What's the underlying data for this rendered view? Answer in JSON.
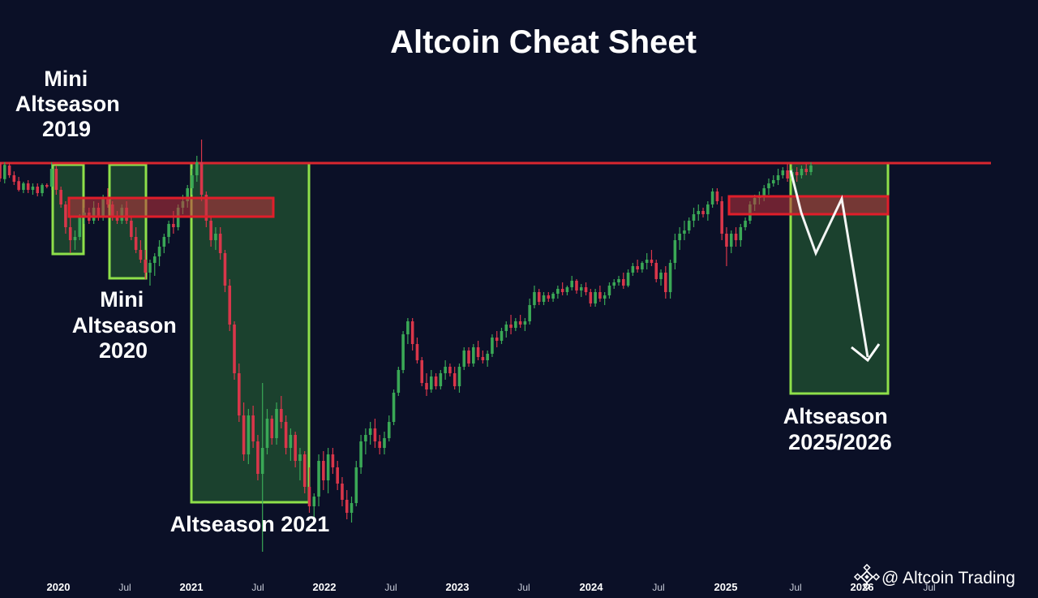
{
  "chart_data": {
    "type": "candlestick",
    "title": "Altcoin Cheat Sheet",
    "x_ticks": [
      {
        "label": "2020",
        "major": true
      },
      {
        "label": "Jul",
        "major": false
      },
      {
        "label": "2021",
        "major": true
      },
      {
        "label": "Jul",
        "major": false
      },
      {
        "label": "2022",
        "major": true
      },
      {
        "label": "Jul",
        "major": false
      },
      {
        "label": "2023",
        "major": true
      },
      {
        "label": "Jul",
        "major": false
      },
      {
        "label": "2024",
        "major": true
      },
      {
        "label": "Jul",
        "major": false
      },
      {
        "label": "2025",
        "major": true
      },
      {
        "label": "Jul",
        "major": false
      },
      {
        "label": "2026",
        "major": true
      },
      {
        "label": "Jul",
        "major": false
      }
    ],
    "annotations": [
      {
        "lines": [
          "Mini",
          "Altseason",
          "2019"
        ]
      },
      {
        "lines": [
          "Mini",
          "Altseason",
          "2020"
        ]
      },
      {
        "lines": [
          "Altseason 2021"
        ]
      },
      {
        "lines": [
          "Altseason",
          "2025/2026"
        ]
      }
    ],
    "candles": [
      {
        "o": 1000,
        "h": 998,
        "l": 940,
        "c": 950
      },
      {
        "o": 948,
        "h": 1000,
        "l": 935,
        "c": 992
      },
      {
        "o": 990,
        "h": 998,
        "l": 952,
        "c": 960
      },
      {
        "o": 960,
        "h": 972,
        "l": 930,
        "c": 940
      },
      {
        "o": 942,
        "h": 955,
        "l": 910,
        "c": 915
      },
      {
        "o": 915,
        "h": 940,
        "l": 905,
        "c": 935
      },
      {
        "o": 935,
        "h": 945,
        "l": 905,
        "c": 915
      },
      {
        "o": 915,
        "h": 935,
        "l": 900,
        "c": 925
      },
      {
        "o": 925,
        "h": 935,
        "l": 895,
        "c": 905
      },
      {
        "o": 905,
        "h": 935,
        "l": 895,
        "c": 930
      },
      {
        "o": 930,
        "h": 935,
        "l": 920,
        "c": 925
      },
      {
        "o": 925,
        "h": 1000,
        "l": 915,
        "c": 980
      },
      {
        "o": 980,
        "h": 990,
        "l": 900,
        "c": 915
      },
      {
        "o": 915,
        "h": 925,
        "l": 860,
        "c": 870
      },
      {
        "o": 870,
        "h": 880,
        "l": 780,
        "c": 800
      },
      {
        "o": 800,
        "h": 830,
        "l": 720,
        "c": 760
      },
      {
        "o": 760,
        "h": 790,
        "l": 730,
        "c": 770
      },
      {
        "o": 770,
        "h": 840,
        "l": 760,
        "c": 830
      },
      {
        "o": 830,
        "h": 860,
        "l": 810,
        "c": 845
      },
      {
        "o": 845,
        "h": 860,
        "l": 810,
        "c": 820
      },
      {
        "o": 820,
        "h": 880,
        "l": 810,
        "c": 860
      },
      {
        "o": 860,
        "h": 875,
        "l": 820,
        "c": 830
      },
      {
        "o": 830,
        "h": 900,
        "l": 820,
        "c": 890
      },
      {
        "o": 890,
        "h": 920,
        "l": 860,
        "c": 870
      },
      {
        "o": 870,
        "h": 880,
        "l": 820,
        "c": 830
      },
      {
        "o": 830,
        "h": 850,
        "l": 810,
        "c": 820
      },
      {
        "o": 820,
        "h": 870,
        "l": 810,
        "c": 860
      },
      {
        "o": 860,
        "h": 880,
        "l": 810,
        "c": 820
      },
      {
        "o": 820,
        "h": 830,
        "l": 760,
        "c": 770
      },
      {
        "o": 770,
        "h": 800,
        "l": 720,
        "c": 730
      },
      {
        "o": 730,
        "h": 760,
        "l": 690,
        "c": 700
      },
      {
        "o": 700,
        "h": 730,
        "l": 640,
        "c": 660
      },
      {
        "o": 660,
        "h": 700,
        "l": 620,
        "c": 690
      },
      {
        "o": 690,
        "h": 720,
        "l": 650,
        "c": 710
      },
      {
        "o": 710,
        "h": 760,
        "l": 680,
        "c": 740
      },
      {
        "o": 740,
        "h": 780,
        "l": 720,
        "c": 770
      },
      {
        "o": 770,
        "h": 820,
        "l": 750,
        "c": 810
      },
      {
        "o": 810,
        "h": 850,
        "l": 780,
        "c": 800
      },
      {
        "o": 800,
        "h": 870,
        "l": 790,
        "c": 860
      },
      {
        "o": 860,
        "h": 900,
        "l": 840,
        "c": 880
      },
      {
        "o": 880,
        "h": 930,
        "l": 860,
        "c": 920
      },
      {
        "o": 920,
        "h": 980,
        "l": 900,
        "c": 960
      },
      {
        "o": 960,
        "h": 1020,
        "l": 940,
        "c": 1000
      },
      {
        "o": 1000,
        "h": 1070,
        "l": 880,
        "c": 900
      },
      {
        "o": 900,
        "h": 910,
        "l": 800,
        "c": 820
      },
      {
        "o": 820,
        "h": 830,
        "l": 740,
        "c": 760
      },
      {
        "o": 760,
        "h": 800,
        "l": 730,
        "c": 780
      },
      {
        "o": 780,
        "h": 800,
        "l": 700,
        "c": 720
      },
      {
        "o": 720,
        "h": 730,
        "l": 600,
        "c": 620
      },
      {
        "o": 620,
        "h": 640,
        "l": 480,
        "c": 500
      },
      {
        "o": 500,
        "h": 510,
        "l": 330,
        "c": 350
      },
      {
        "o": 350,
        "h": 380,
        "l": 200,
        "c": 220
      },
      {
        "o": 220,
        "h": 260,
        "l": 80,
        "c": 100
      },
      {
        "o": 100,
        "h": 240,
        "l": 70,
        "c": 220
      },
      {
        "o": 220,
        "h": 250,
        "l": 120,
        "c": 140
      },
      {
        "o": 140,
        "h": 160,
        "l": 20,
        "c": 40
      },
      {
        "o": 40,
        "h": 320,
        "l": -200,
        "c": 120
      },
      {
        "o": 120,
        "h": 240,
        "l": 100,
        "c": 210
      },
      {
        "o": 210,
        "h": 220,
        "l": 130,
        "c": 150
      },
      {
        "o": 150,
        "h": 260,
        "l": 130,
        "c": 240
      },
      {
        "o": 240,
        "h": 280,
        "l": 180,
        "c": 200
      },
      {
        "o": 200,
        "h": 220,
        "l": 100,
        "c": 120
      },
      {
        "o": 120,
        "h": 180,
        "l": 80,
        "c": 160
      },
      {
        "o": 160,
        "h": 170,
        "l": 60,
        "c": 80
      },
      {
        "o": 80,
        "h": 120,
        "l": 20,
        "c": 100
      },
      {
        "o": 100,
        "h": 110,
        "l": -20,
        "c": 0
      },
      {
        "o": 0,
        "h": 60,
        "l": -80,
        "c": -60
      },
      {
        "o": -60,
        "h": -20,
        "l": -100,
        "c": -30
      },
      {
        "o": -30,
        "h": 100,
        "l": -60,
        "c": 80
      },
      {
        "o": 80,
        "h": 110,
        "l": -10,
        "c": 20
      },
      {
        "o": 20,
        "h": 120,
        "l": -20,
        "c": 100
      },
      {
        "o": 100,
        "h": 120,
        "l": 40,
        "c": 60
      },
      {
        "o": 60,
        "h": 80,
        "l": -10,
        "c": 10
      },
      {
        "o": 10,
        "h": 30,
        "l": -60,
        "c": -40
      },
      {
        "o": -40,
        "h": -10,
        "l": -100,
        "c": -80
      },
      {
        "o": -80,
        "h": -30,
        "l": -110,
        "c": -50
      },
      {
        "o": -50,
        "h": 80,
        "l": -60,
        "c": 60
      },
      {
        "o": 60,
        "h": 160,
        "l": 40,
        "c": 140
      },
      {
        "o": 140,
        "h": 180,
        "l": 100,
        "c": 160
      },
      {
        "o": 160,
        "h": 200,
        "l": 130,
        "c": 180
      },
      {
        "o": 180,
        "h": 210,
        "l": 120,
        "c": 140
      },
      {
        "o": 140,
        "h": 160,
        "l": 100,
        "c": 120
      },
      {
        "o": 120,
        "h": 170,
        "l": 100,
        "c": 150
      },
      {
        "o": 150,
        "h": 220,
        "l": 140,
        "c": 200
      },
      {
        "o": 200,
        "h": 300,
        "l": 190,
        "c": 290
      },
      {
        "o": 290,
        "h": 370,
        "l": 280,
        "c": 360
      },
      {
        "o": 360,
        "h": 480,
        "l": 350,
        "c": 470
      },
      {
        "o": 470,
        "h": 520,
        "l": 440,
        "c": 510
      },
      {
        "o": 510,
        "h": 520,
        "l": 420,
        "c": 440
      },
      {
        "o": 440,
        "h": 460,
        "l": 380,
        "c": 390
      },
      {
        "o": 390,
        "h": 400,
        "l": 310,
        "c": 320
      },
      {
        "o": 320,
        "h": 350,
        "l": 280,
        "c": 300
      },
      {
        "o": 300,
        "h": 360,
        "l": 290,
        "c": 340
      },
      {
        "o": 340,
        "h": 350,
        "l": 300,
        "c": 310
      },
      {
        "o": 310,
        "h": 360,
        "l": 300,
        "c": 350
      },
      {
        "o": 350,
        "h": 390,
        "l": 330,
        "c": 370
      },
      {
        "o": 370,
        "h": 380,
        "l": 340,
        "c": 350
      },
      {
        "o": 350,
        "h": 370,
        "l": 300,
        "c": 310
      },
      {
        "o": 310,
        "h": 380,
        "l": 290,
        "c": 370
      },
      {
        "o": 370,
        "h": 430,
        "l": 360,
        "c": 420
      },
      {
        "o": 420,
        "h": 430,
        "l": 370,
        "c": 380
      },
      {
        "o": 380,
        "h": 440,
        "l": 370,
        "c": 430
      },
      {
        "o": 430,
        "h": 450,
        "l": 390,
        "c": 400
      },
      {
        "o": 400,
        "h": 420,
        "l": 380,
        "c": 390
      },
      {
        "o": 390,
        "h": 420,
        "l": 370,
        "c": 410
      },
      {
        "o": 410,
        "h": 470,
        "l": 400,
        "c": 460
      },
      {
        "o": 460,
        "h": 480,
        "l": 430,
        "c": 450
      },
      {
        "o": 450,
        "h": 490,
        "l": 440,
        "c": 480
      },
      {
        "o": 480,
        "h": 510,
        "l": 460,
        "c": 500
      },
      {
        "o": 500,
        "h": 530,
        "l": 470,
        "c": 490
      },
      {
        "o": 490,
        "h": 520,
        "l": 480,
        "c": 510
      },
      {
        "o": 510,
        "h": 530,
        "l": 490,
        "c": 500
      },
      {
        "o": 500,
        "h": 520,
        "l": 480,
        "c": 510
      },
      {
        "o": 510,
        "h": 580,
        "l": 500,
        "c": 560
      },
      {
        "o": 560,
        "h": 620,
        "l": 550,
        "c": 600
      },
      {
        "o": 600,
        "h": 610,
        "l": 560,
        "c": 570
      },
      {
        "o": 570,
        "h": 600,
        "l": 560,
        "c": 590
      },
      {
        "o": 590,
        "h": 600,
        "l": 570,
        "c": 580
      },
      {
        "o": 580,
        "h": 600,
        "l": 570,
        "c": 595
      },
      {
        "o": 595,
        "h": 620,
        "l": 580,
        "c": 610
      },
      {
        "o": 610,
        "h": 630,
        "l": 590,
        "c": 600
      },
      {
        "o": 600,
        "h": 620,
        "l": 590,
        "c": 615
      },
      {
        "o": 615,
        "h": 650,
        "l": 605,
        "c": 635
      },
      {
        "o": 635,
        "h": 640,
        "l": 595,
        "c": 605
      },
      {
        "o": 605,
        "h": 625,
        "l": 585,
        "c": 615
      },
      {
        "o": 615,
        "h": 630,
        "l": 590,
        "c": 600
      },
      {
        "o": 600,
        "h": 610,
        "l": 555,
        "c": 565
      },
      {
        "o": 565,
        "h": 610,
        "l": 555,
        "c": 600
      },
      {
        "o": 600,
        "h": 620,
        "l": 570,
        "c": 580
      },
      {
        "o": 580,
        "h": 600,
        "l": 560,
        "c": 590
      },
      {
        "o": 590,
        "h": 630,
        "l": 580,
        "c": 620
      },
      {
        "o": 620,
        "h": 640,
        "l": 610,
        "c": 630
      },
      {
        "o": 630,
        "h": 650,
        "l": 620,
        "c": 640
      },
      {
        "o": 640,
        "h": 660,
        "l": 610,
        "c": 620
      },
      {
        "o": 620,
        "h": 670,
        "l": 615,
        "c": 660
      },
      {
        "o": 660,
        "h": 690,
        "l": 650,
        "c": 680
      },
      {
        "o": 680,
        "h": 700,
        "l": 660,
        "c": 670
      },
      {
        "o": 670,
        "h": 695,
        "l": 660,
        "c": 690
      },
      {
        "o": 690,
        "h": 720,
        "l": 670,
        "c": 700
      },
      {
        "o": 700,
        "h": 730,
        "l": 680,
        "c": 690
      },
      {
        "o": 690,
        "h": 700,
        "l": 630,
        "c": 640
      },
      {
        "o": 640,
        "h": 670,
        "l": 620,
        "c": 660
      },
      {
        "o": 660,
        "h": 680,
        "l": 580,
        "c": 600
      },
      {
        "o": 600,
        "h": 700,
        "l": 580,
        "c": 690
      },
      {
        "o": 690,
        "h": 780,
        "l": 670,
        "c": 760
      },
      {
        "o": 760,
        "h": 800,
        "l": 730,
        "c": 780
      },
      {
        "o": 780,
        "h": 820,
        "l": 760,
        "c": 790
      },
      {
        "o": 790,
        "h": 830,
        "l": 780,
        "c": 820
      },
      {
        "o": 820,
        "h": 860,
        "l": 800,
        "c": 840
      },
      {
        "o": 840,
        "h": 870,
        "l": 820,
        "c": 850
      },
      {
        "o": 850,
        "h": 860,
        "l": 830,
        "c": 840
      },
      {
        "o": 840,
        "h": 880,
        "l": 820,
        "c": 870
      },
      {
        "o": 870,
        "h": 920,
        "l": 860,
        "c": 910
      },
      {
        "o": 910,
        "h": 920,
        "l": 870,
        "c": 880
      },
      {
        "o": 880,
        "h": 895,
        "l": 760,
        "c": 780
      },
      {
        "o": 780,
        "h": 800,
        "l": 680,
        "c": 740
      },
      {
        "o": 740,
        "h": 790,
        "l": 720,
        "c": 780
      },
      {
        "o": 780,
        "h": 800,
        "l": 740,
        "c": 760
      },
      {
        "o": 760,
        "h": 810,
        "l": 740,
        "c": 800
      },
      {
        "o": 800,
        "h": 830,
        "l": 790,
        "c": 820
      },
      {
        "o": 820,
        "h": 880,
        "l": 810,
        "c": 870
      },
      {
        "o": 870,
        "h": 900,
        "l": 850,
        "c": 890
      },
      {
        "o": 890,
        "h": 910,
        "l": 870,
        "c": 895
      },
      {
        "o": 895,
        "h": 930,
        "l": 880,
        "c": 920
      },
      {
        "o": 920,
        "h": 950,
        "l": 900,
        "c": 935
      },
      {
        "o": 935,
        "h": 960,
        "l": 925,
        "c": 945
      },
      {
        "o": 945,
        "h": 980,
        "l": 930,
        "c": 960
      },
      {
        "o": 960,
        "h": 985,
        "l": 950,
        "c": 975
      },
      {
        "o": 975,
        "h": 995,
        "l": 940,
        "c": 950
      },
      {
        "o": 950,
        "h": 980,
        "l": 945,
        "c": 970
      },
      {
        "o": 970,
        "h": 985,
        "l": 940,
        "c": 960
      },
      {
        "o": 960,
        "h": 990,
        "l": 950,
        "c": 980
      },
      {
        "o": 980,
        "h": 995,
        "l": 960,
        "c": 970
      },
      {
        "o": 970,
        "h": 1000,
        "l": 960,
        "c": 990
      }
    ]
  },
  "watermark": {
    "text": "@ Altcoin Trading",
    "icon": "diamond-logo-icon"
  },
  "colors": {
    "background": "#0b1027",
    "bull": "#3aa856",
    "bear": "#d9364a",
    "resistance": "#d9262f",
    "zone_fill": "#2a6a35",
    "zone_border": "#8ee04a",
    "arrow": "#ffffff"
  }
}
